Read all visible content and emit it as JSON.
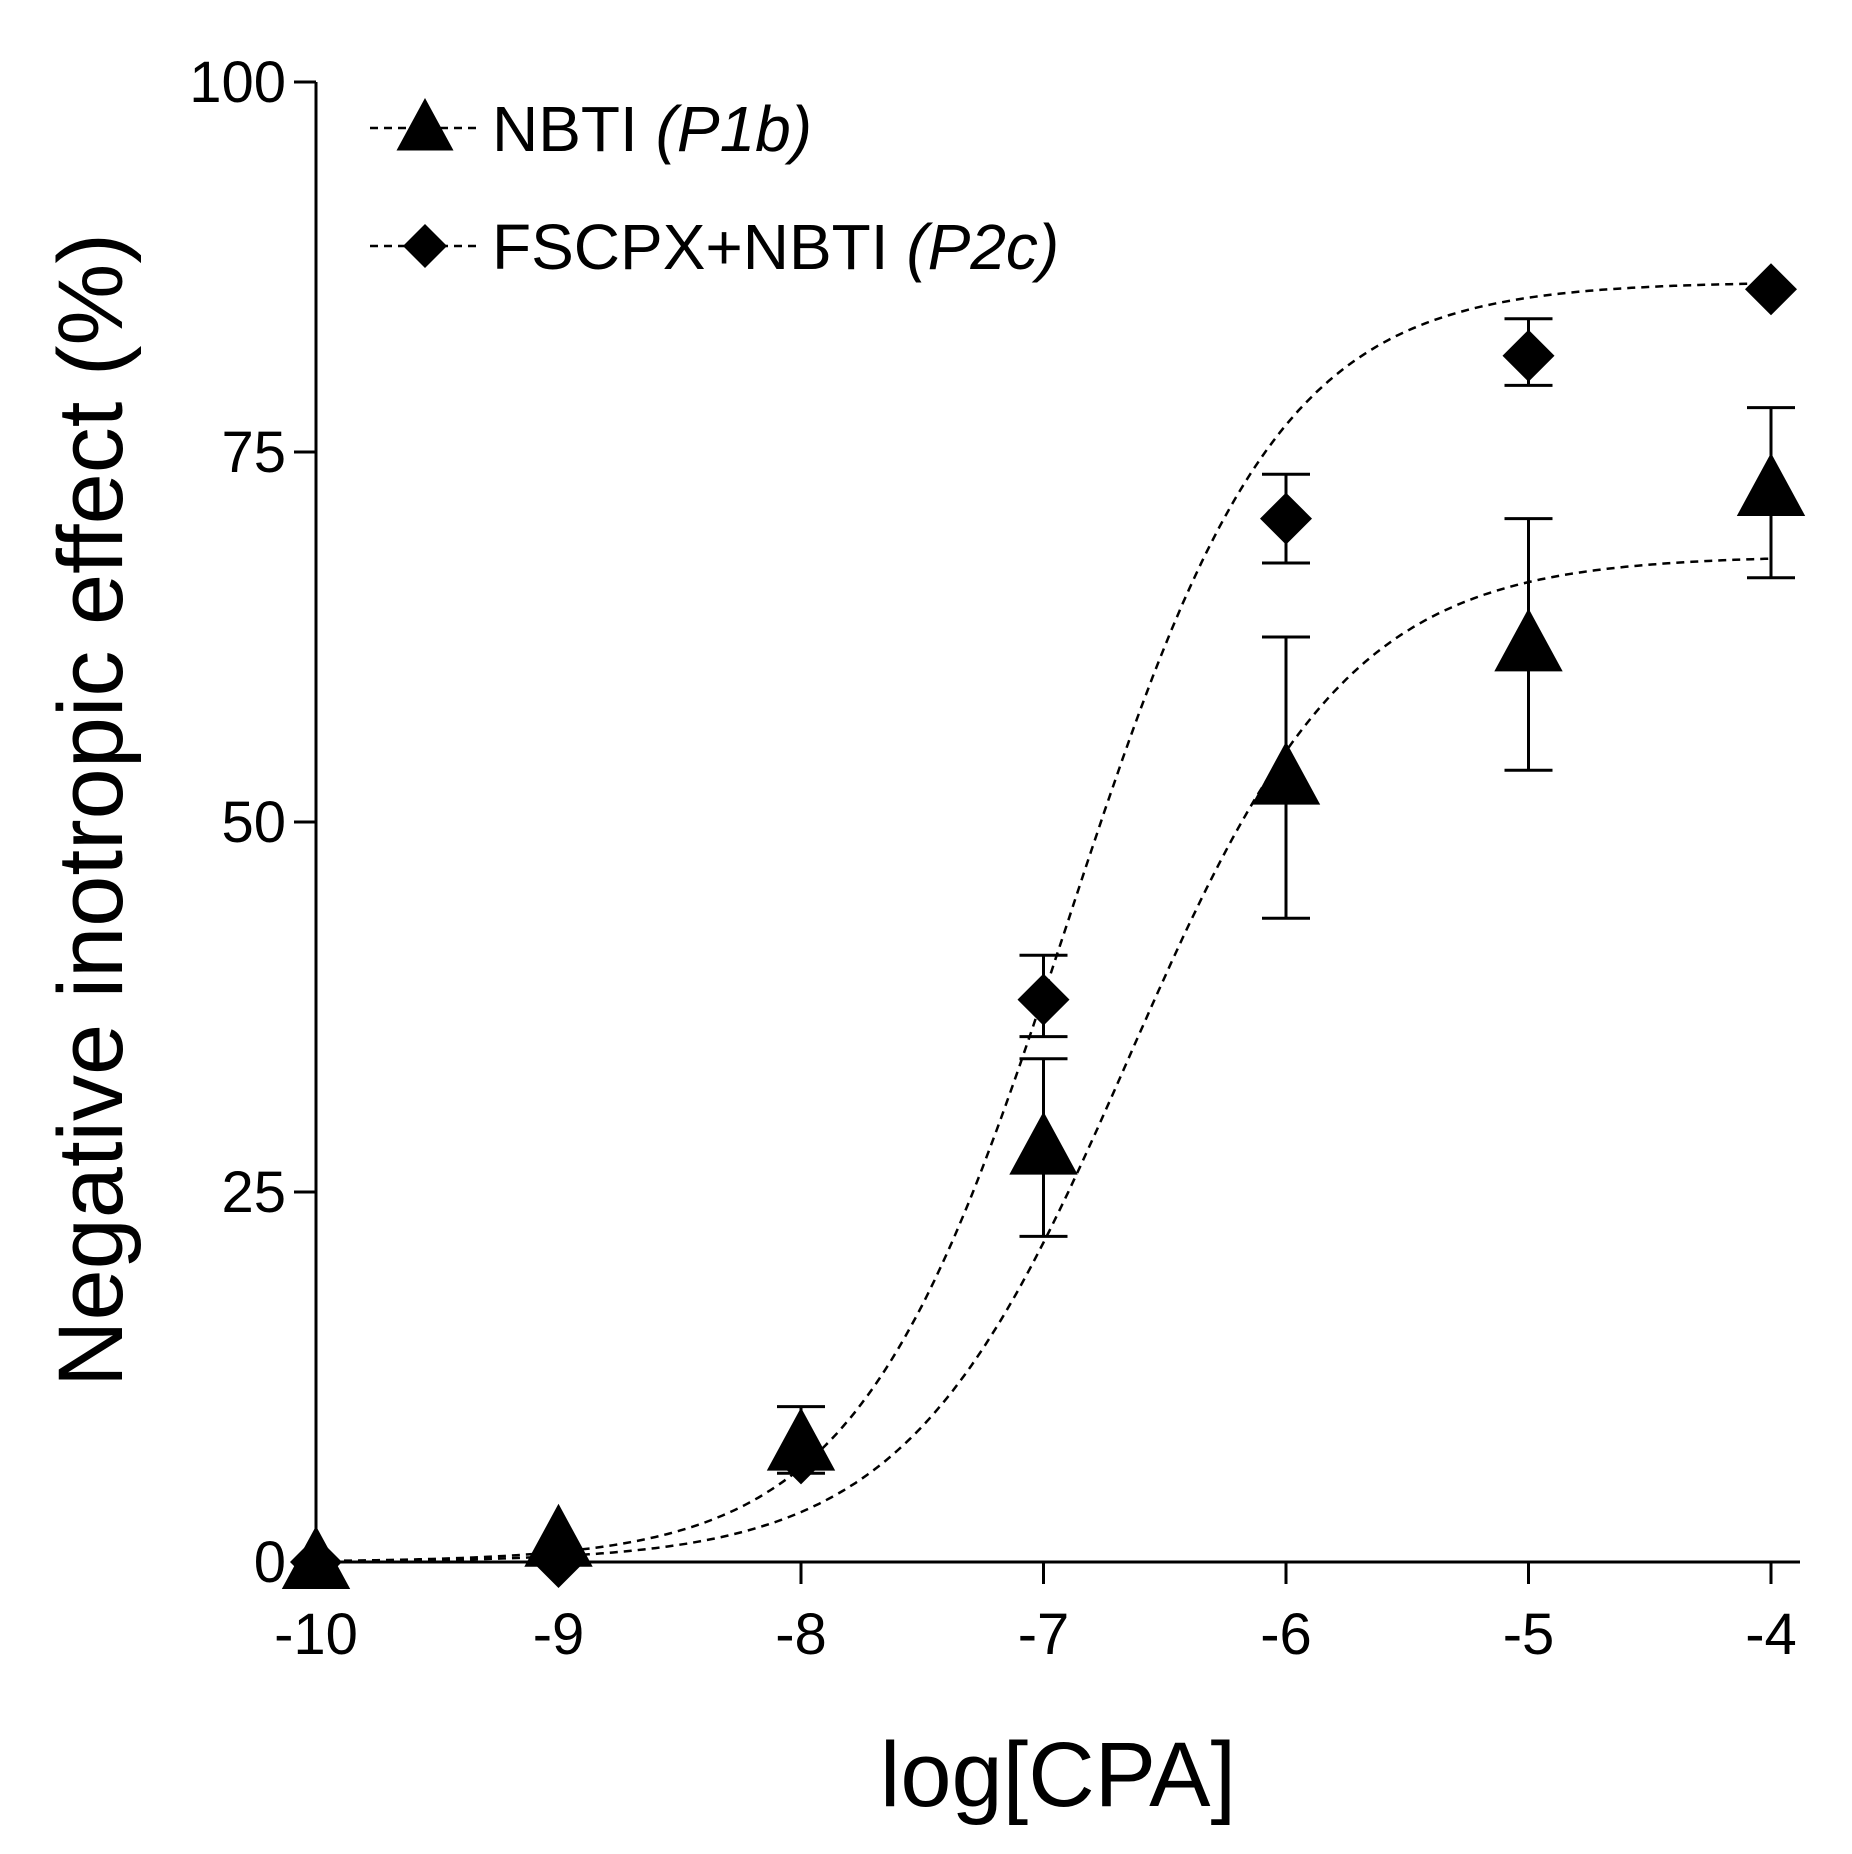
{
  "chart_data": {
    "type": "scatter",
    "title": "",
    "xlabel": "log[CPA]",
    "ylabel": "Negative inotropic effect (%)",
    "xlim": [
      -10,
      -3.9
    ],
    "ylim": [
      0,
      100
    ],
    "x_ticks": [
      -10,
      -9,
      -8,
      -7,
      -6,
      -5,
      -4
    ],
    "x_tick_labels": [
      "-10",
      "-9",
      "-8",
      "-7",
      "-6",
      "-5",
      "-4"
    ],
    "y_ticks": [
      0,
      25,
      50,
      75,
      100
    ],
    "y_tick_labels": [
      "0",
      "25",
      "50",
      "75",
      "100"
    ],
    "grid": false,
    "legend_position": "top-left",
    "series": [
      {
        "key": "nbti",
        "name": "NBTI",
        "note": "(P1b)",
        "marker": "triangle",
        "color": "#000000",
        "x": [
          -10,
          -9,
          -8,
          -7,
          -6,
          -5,
          -4
        ],
        "y": [
          0,
          1.5,
          8,
          28,
          53,
          62,
          72.5
        ],
        "err_upper": [
          0,
          0,
          10.5,
          34,
          62.5,
          70.5,
          78
        ],
        "err_lower": [
          0,
          0,
          0,
          22,
          43.5,
          53.5,
          66.5
        ],
        "fit": {
          "bottom": 0,
          "top": 68,
          "logEC50": -6.65,
          "hill": 0.95
        }
      },
      {
        "key": "fscpx",
        "name": "FSCPX+NBTI",
        "note": "(P2c)",
        "marker": "diamond",
        "color": "#000000",
        "x": [
          -10,
          -9,
          -8,
          -7,
          -6,
          -5,
          -4
        ],
        "y": [
          0,
          0,
          7,
          38,
          70.5,
          81.5,
          86
        ],
        "err_upper": [
          0,
          0,
          0,
          41,
          73.5,
          84,
          0
        ],
        "err_lower": [
          0,
          0,
          6,
          35.5,
          67.5,
          79.5,
          0
        ],
        "fit": {
          "bottom": 0,
          "top": 86.5,
          "logEC50": -6.9,
          "hill": 1.0
        }
      }
    ]
  }
}
